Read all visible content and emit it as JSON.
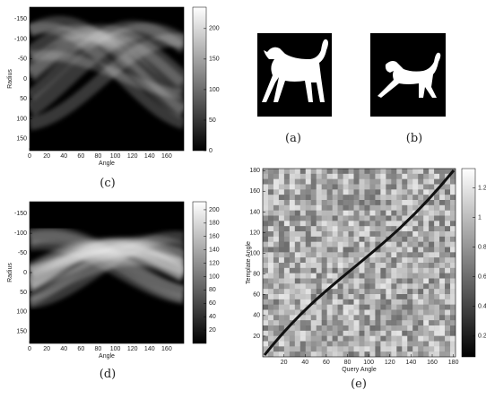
{
  "panels": [
    {
      "label": "(c)",
      "x_label": "Angle",
      "y_label": "Radius",
      "xlim": [
        0,
        180
      ],
      "ylim": [
        -180,
        180
      ],
      "y_direction": "reverse",
      "xticks": [
        0,
        20,
        40,
        60,
        80,
        100,
        120,
        140,
        160
      ],
      "yticks": [
        -150,
        -100,
        -50,
        0,
        50,
        100,
        150
      ],
      "colorbar": {
        "lim": [
          0,
          235
        ],
        "ticks": [
          0,
          50,
          100,
          150,
          200
        ]
      }
    },
    {
      "label": "(d)",
      "x_label": "Angle",
      "y_label": "Radius",
      "xlim": [
        0,
        180
      ],
      "ylim": [
        -180,
        180
      ],
      "y_direction": "reverse",
      "xticks": [
        0,
        20,
        40,
        60,
        80,
        100,
        120,
        140,
        160
      ],
      "yticks": [
        -150,
        -100,
        -50,
        0,
        50,
        100,
        150
      ],
      "colorbar": {
        "lim": [
          0,
          212
        ],
        "ticks": [
          20,
          40,
          60,
          80,
          100,
          120,
          140,
          160,
          180,
          200
        ]
      }
    },
    {
      "label": "(e)",
      "x_label": "Query Angle",
      "y_label": "Template Angle",
      "xlim": [
        0,
        182
      ],
      "ylim": [
        0,
        182
      ],
      "y_direction": "normal",
      "xticks": [
        20,
        40,
        60,
        80,
        100,
        120,
        140,
        160,
        180
      ],
      "yticks": [
        20,
        40,
        60,
        80,
        100,
        120,
        140,
        160,
        180
      ],
      "colorbar": {
        "lim": [
          0.06,
          1.33
        ],
        "ticks": [
          0.2,
          0.4,
          0.6,
          0.8,
          1,
          1.2
        ]
      }
    }
  ],
  "images": [
    {
      "label": "(a)"
    },
    {
      "label": "(b)"
    }
  ]
}
